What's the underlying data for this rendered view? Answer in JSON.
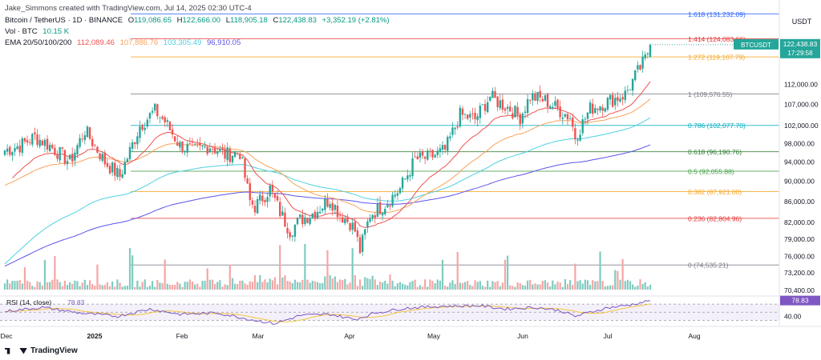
{
  "header": {
    "creator": "Jake_Simmons created with TradingView.com, Jul 14, 2025 02:30 UTC-4",
    "symbol": "Bitcoin / TetherUS · 1D · BINANCE",
    "ohlc": {
      "o_label": "O",
      "o": "119,086.65",
      "h_label": "H",
      "h": "122,666.00",
      "l_label": "L",
      "l": "118,905.18",
      "c_label": "C",
      "c": "122,438.83",
      "change": "+3,352.19 (+2.81%)"
    },
    "vol_label": "Vol · BTC",
    "vol_value": "10.15 K",
    "ema_label": "EMA 20/50/100/200",
    "ema_values": [
      "112,089.46",
      "107,886.76",
      "103,305.49",
      "96,910.05"
    ]
  },
  "currency": "USDT",
  "price_tag": {
    "symbol": "BTCUSDT",
    "price": "122,438.83",
    "countdown": "17:29:58"
  },
  "rsi_label": "RSI (14, close)",
  "rsi_value": "78.83",
  "footer_brand": "TradingView",
  "colors": {
    "up": "#26a69a",
    "down": "#ef5350",
    "ema20": "#ef5350",
    "ema50": "#f7a35c",
    "ema100": "#4dd0e1",
    "ema200": "#5b54e8",
    "rsi": "#7e57c2",
    "rsi_ma": "#f5c542"
  },
  "chart_data": {
    "type": "candlestick",
    "y_scale": "log",
    "ylim": [
      69500,
      132500
    ],
    "y_ticks": [
      "112,000.00",
      "107,000.00",
      "102,000.00",
      "98,000.00",
      "94,000.00",
      "90,000.00",
      "86,000.00",
      "82,000.00",
      "79,000.00",
      "76,000.00",
      "73,200.00",
      "70,400.00"
    ],
    "x_ticks": [
      "Dec",
      "2025",
      "Feb",
      "Mar",
      "Apr",
      "May",
      "Jun",
      "Jul",
      "Aug"
    ],
    "fib_levels": [
      {
        "label": "1.618 (131,232.09)",
        "value": 131232.09,
        "color": "#2962ff"
      },
      {
        "label": "1.414 (124,083.66)",
        "value": 124083.66,
        "color": "#e53935"
      },
      {
        "label": "1.272 (119,107.79)",
        "value": 119107.79,
        "color": "#f5a623"
      },
      {
        "label": "1 (109,576.55)",
        "value": 109576.55,
        "color": "#787b86"
      },
      {
        "label": "0.786 (102,077.70)",
        "value": 102077.7,
        "color": "#00acc1"
      },
      {
        "label": "0.618 (96,190.76)",
        "value": 96190.76,
        "color": "#2e7d32"
      },
      {
        "label": "0.5 (92,055.88)",
        "value": 92055.88,
        "color": "#43a047"
      },
      {
        "label": "0.382 (87,921.00)",
        "value": 87921.0,
        "color": "#f5a623"
      },
      {
        "label": "0.236 (82,804.96)",
        "value": 82804.96,
        "color": "#e53935"
      },
      {
        "label": "0 (74,535.21)",
        "value": 74535.21,
        "color": "#787b86"
      }
    ],
    "close_anchors": [
      [
        0,
        96500
      ],
      [
        6,
        97500
      ],
      [
        12,
        99500
      ],
      [
        18,
        97500
      ],
      [
        26,
        94000
      ],
      [
        32,
        101000
      ],
      [
        40,
        94000
      ],
      [
        46,
        91000
      ],
      [
        54,
        102000
      ],
      [
        60,
        105500
      ],
      [
        64,
        103000
      ],
      [
        70,
        97500
      ],
      [
        76,
        96500
      ],
      [
        82,
        97500
      ],
      [
        88,
        95500
      ],
      [
        94,
        96000
      ],
      [
        98,
        86000
      ],
      [
        100,
        85000
      ],
      [
        106,
        88500
      ],
      [
        110,
        84000
      ],
      [
        114,
        80500
      ],
      [
        118,
        82500
      ],
      [
        124,
        84000
      ],
      [
        130,
        86500
      ],
      [
        134,
        83500
      ],
      [
        138,
        82000
      ],
      [
        140,
        80500
      ],
      [
        142,
        77000
      ],
      [
        146,
        83500
      ],
      [
        152,
        85500
      ],
      [
        158,
        88500
      ],
      [
        164,
        94500
      ],
      [
        170,
        95000
      ],
      [
        176,
        96500
      ],
      [
        182,
        104500
      ],
      [
        188,
        103500
      ],
      [
        194,
        109000
      ],
      [
        196,
        108000
      ],
      [
        202,
        106000
      ],
      [
        206,
        104000
      ],
      [
        210,
        109000
      ],
      [
        216,
        108000
      ],
      [
        222,
        105500
      ],
      [
        226,
        104000
      ],
      [
        228,
        99500
      ],
      [
        230,
        101500
      ],
      [
        234,
        106000
      ],
      [
        242,
        108000
      ],
      [
        248,
        109500
      ],
      [
        252,
        114000
      ],
      [
        256,
        118500
      ],
      [
        258,
        122438.83
      ]
    ],
    "ema_end": {
      "ema20": 112089.46,
      "ema50": 107886.76,
      "ema100": 103305.49,
      "ema200": 96910.05
    },
    "rsi": {
      "last": 78.83,
      "anchors": [
        [
          0,
          52
        ],
        [
          15,
          62
        ],
        [
          30,
          48
        ],
        [
          45,
          40
        ],
        [
          58,
          58
        ],
        [
          70,
          45
        ],
        [
          85,
          48
        ],
        [
          100,
          30
        ],
        [
          108,
          22
        ],
        [
          118,
          42
        ],
        [
          130,
          45
        ],
        [
          140,
          32
        ],
        [
          148,
          48
        ],
        [
          160,
          60
        ],
        [
          175,
          65
        ],
        [
          190,
          66
        ],
        [
          200,
          58
        ],
        [
          212,
          62
        ],
        [
          222,
          54
        ],
        [
          228,
          40
        ],
        [
          240,
          60
        ],
        [
          250,
          68
        ],
        [
          258,
          78.83
        ]
      ],
      "ylim": [
        15,
        90
      ],
      "ticks": [
        "80.00",
        "40.00"
      ]
    }
  }
}
